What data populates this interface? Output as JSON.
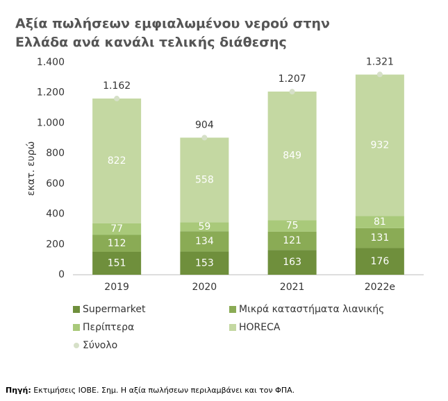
{
  "chart_data": {
    "type": "stacked_bar",
    "title_lines": [
      "Αξία πωλήσεων εμφιαλωμένου νερού στην",
      "Ελλάδα ανά κανάλι τελικής διάθεσης"
    ],
    "y_label": "εκατ. ευρώ",
    "categories": [
      "2019",
      "2020",
      "2021",
      "2022e"
    ],
    "series": [
      {
        "name": "Supermarket",
        "color": "#6f8f3c",
        "values": [
          151,
          153,
          163,
          176
        ]
      },
      {
        "name": "Μικρά καταστήματα λιανικής",
        "color": "#8aab55",
        "values": [
          112,
          134,
          121,
          131
        ]
      },
      {
        "name": "Περίπτερα",
        "color": "#a9c97a",
        "values": [
          77,
          59,
          75,
          81
        ]
      },
      {
        "name": "HORECA",
        "color": "#c4d8a2",
        "values": [
          822,
          558,
          849,
          932
        ]
      }
    ],
    "totals": {
      "name": "Σύνολο",
      "color": "#d6e0c8",
      "values": [
        1162,
        904,
        1207,
        1321
      ],
      "value_labels": [
        "1.162",
        "904",
        "1.207",
        "1.321"
      ]
    },
    "ylim": [
      0,
      1400
    ],
    "yticks": [
      0,
      200,
      400,
      600,
      800,
      {
        "value": 1000,
        "label": "1.000"
      },
      {
        "value": 1200,
        "label": "1.200"
      },
      {
        "value": 1400,
        "label": "1.400"
      }
    ],
    "grid": false,
    "source_label": "Πηγή:",
    "source_text": " Εκτιμήσεις ΙΟΒΕ. Σημ. Η αξία πωλήσεων περιλαμβάνει και τον ΦΠΑ."
  }
}
